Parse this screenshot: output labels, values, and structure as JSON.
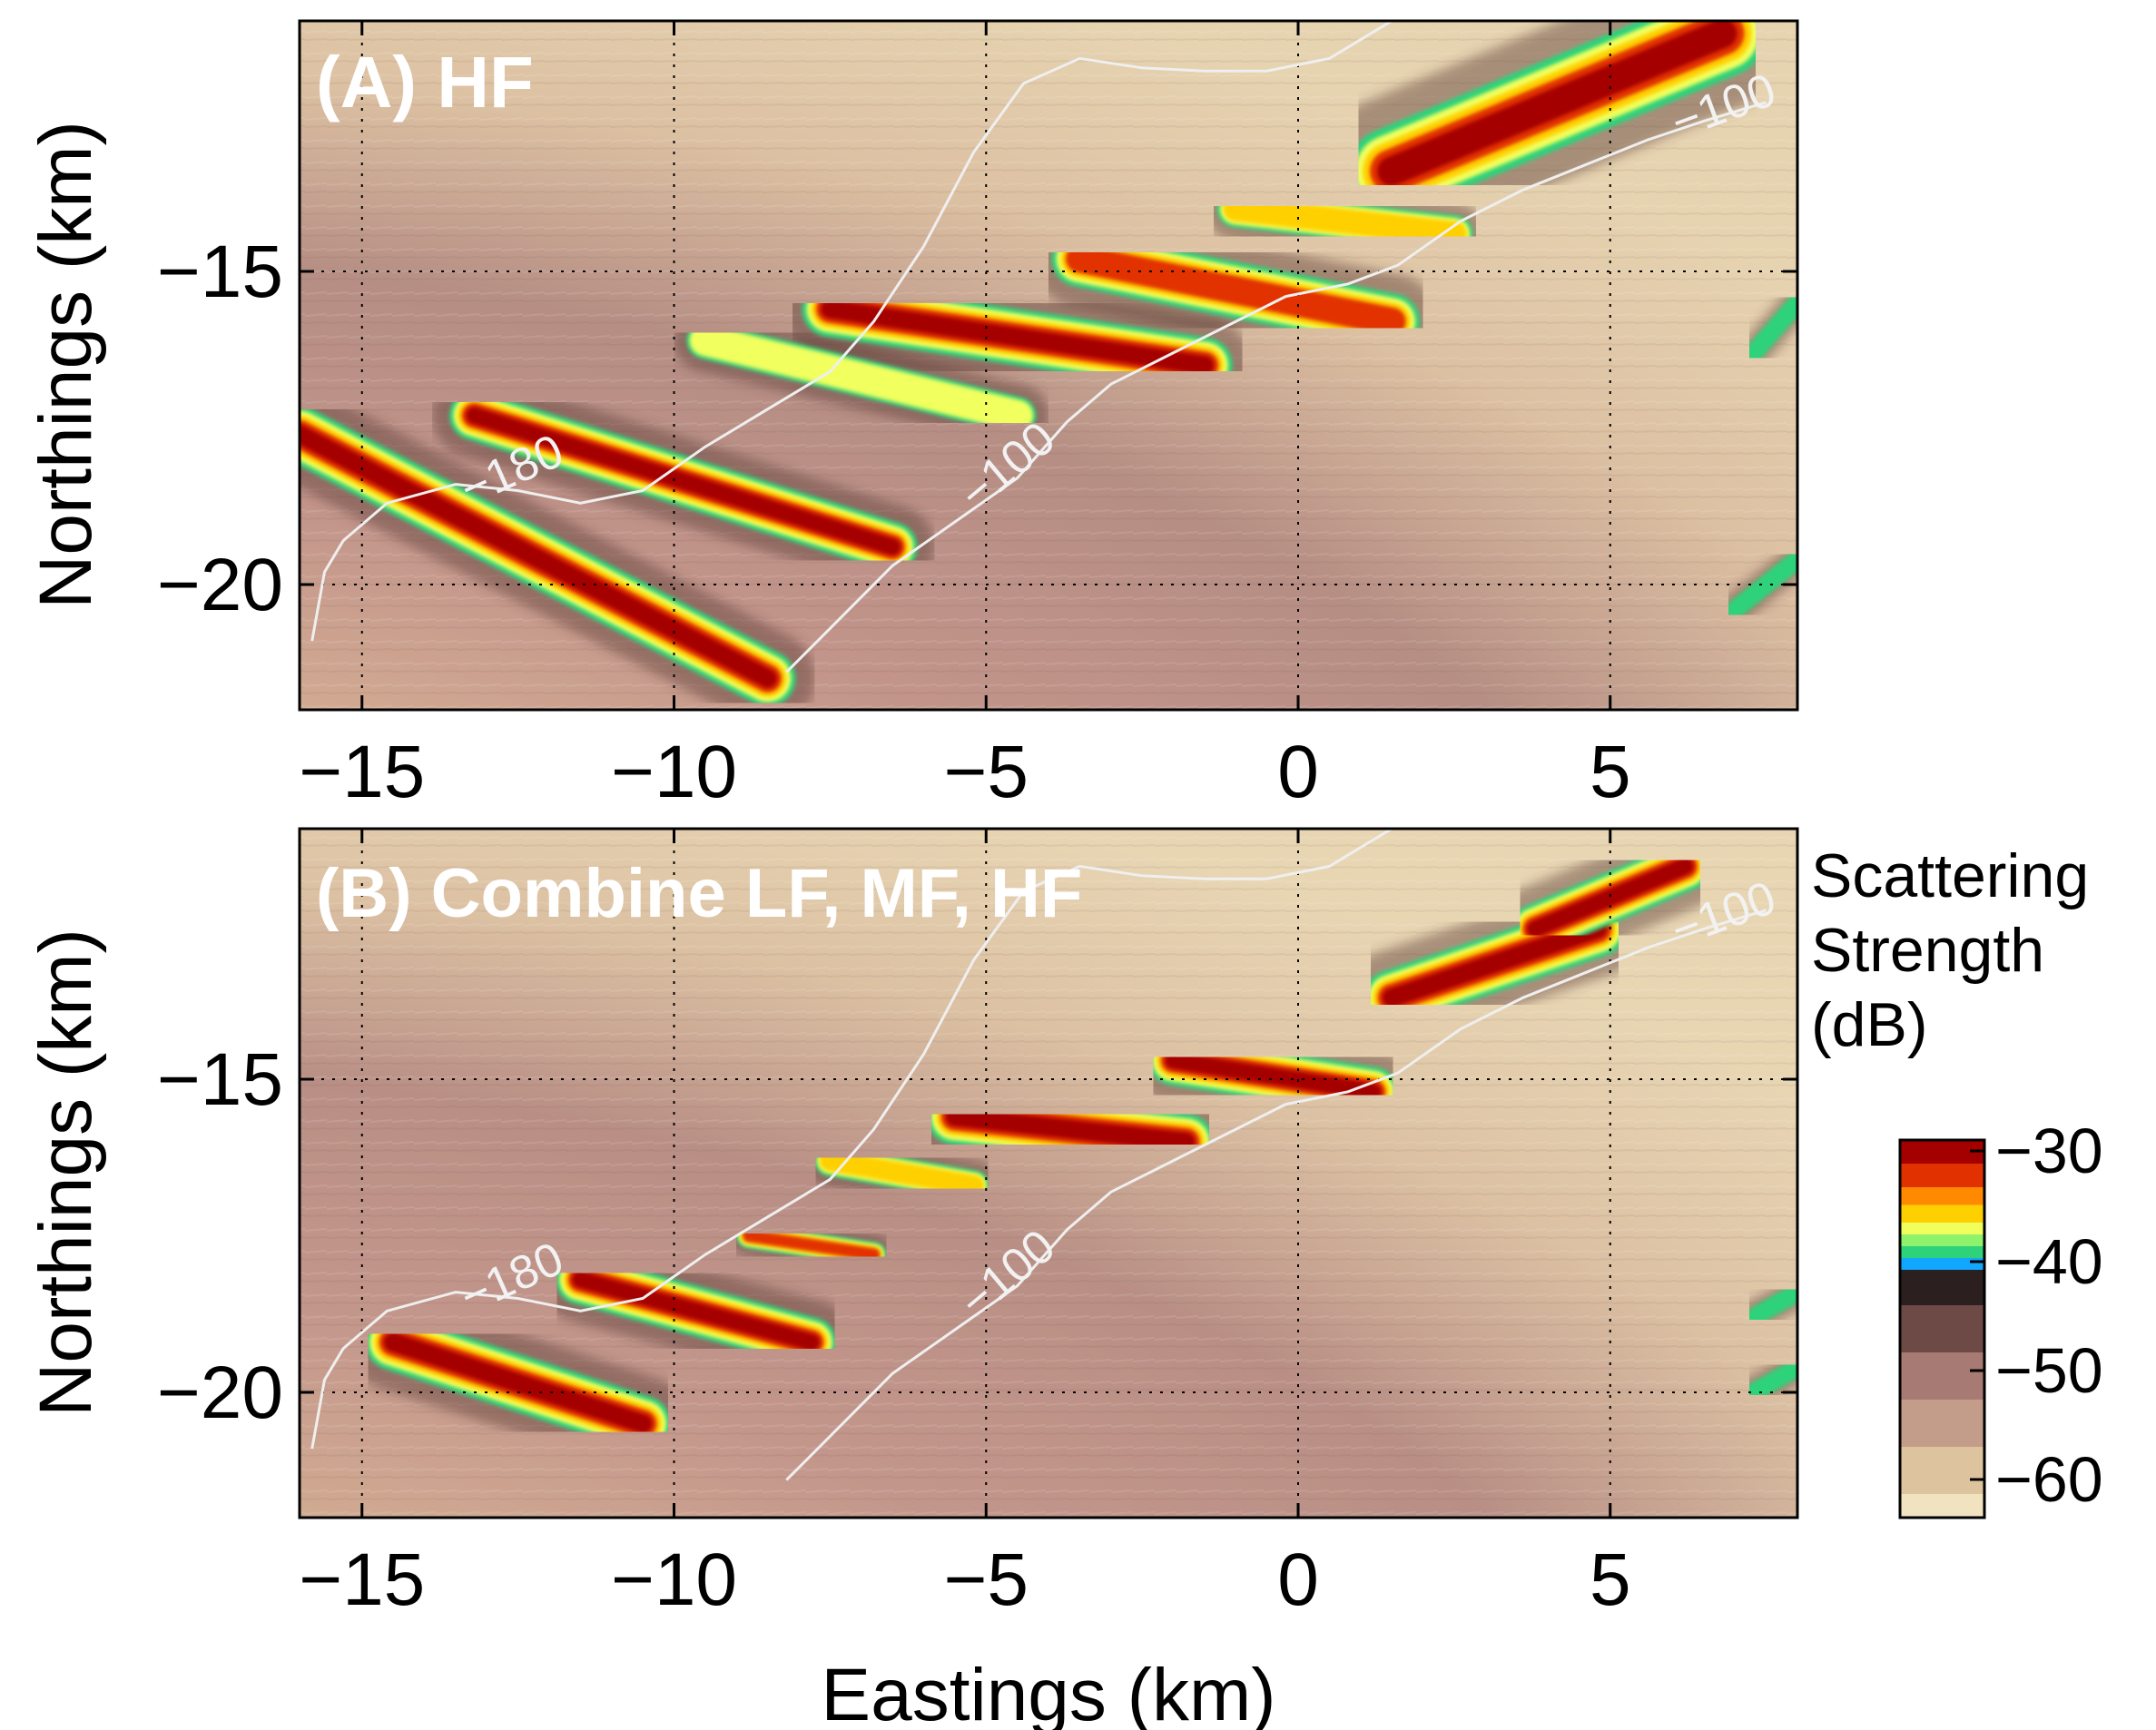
{
  "figure": {
    "panels": [
      {
        "id": "A",
        "title": "(A) HF"
      },
      {
        "id": "B",
        "title": "(B) Combine LF, MF, HF"
      }
    ],
    "xlabel": "Eastings (km)",
    "ylabel": "Northings (km)",
    "colorbar": {
      "label_lines": [
        "Scattering",
        "Strength",
        "(dB)"
      ],
      "ticks": [
        "−30",
        "−40",
        "−50",
        "−60"
      ]
    }
  },
  "chart_data": [
    {
      "type": "heatmap",
      "title": "(A) HF",
      "xlabel": "",
      "ylabel": "Northings (km)",
      "xlim": [
        -16,
        8
      ],
      "ylim": [
        -22,
        -11
      ],
      "x_ticks": [
        -15,
        -10,
        -5,
        0,
        5
      ],
      "x_tick_labels": [
        "−15",
        "−10",
        "−5",
        "0",
        "5"
      ],
      "y_ticks": [
        -15,
        -20
      ],
      "y_tick_labels": [
        "−15",
        "−20"
      ],
      "grid": true,
      "colormap_range_db": [
        -62,
        -30
      ],
      "contours": [
        {
          "label": "−180",
          "points": [
            [
              -15.8,
              -20.9
            ],
            [
              -15.6,
              -19.8
            ],
            [
              -15.3,
              -19.3
            ],
            [
              -14.6,
              -18.7
            ],
            [
              -13.5,
              -18.4
            ],
            [
              -12.5,
              -18.5
            ],
            [
              -11.5,
              -18.7
            ],
            [
              -10.5,
              -18.5
            ],
            [
              -9.5,
              -17.8
            ],
            [
              -8.5,
              -17.2
            ],
            [
              -7.5,
              -16.6
            ],
            [
              -6.8,
              -15.8
            ],
            [
              -6.0,
              -14.6
            ],
            [
              -5.2,
              -13.1
            ],
            [
              -4.4,
              -12.0
            ],
            [
              -3.5,
              -11.6
            ],
            [
              -2.5,
              -11.75
            ],
            [
              -1.5,
              -11.8
            ],
            [
              -0.5,
              -11.8
            ],
            [
              0.5,
              -11.6
            ],
            [
              1.5,
              -11.0
            ],
            [
              2.4,
              -10.7
            ],
            [
              3.2,
              -10.5
            ]
          ]
        },
        {
          "label": "−100",
          "points": [
            [
              -8.2,
              -21.4
            ],
            [
              -7.4,
              -20.6
            ],
            [
              -6.5,
              -19.7
            ],
            [
              -5.5,
              -19.0
            ],
            [
              -4.5,
              -18.3
            ],
            [
              -3.7,
              -17.4
            ],
            [
              -3.0,
              -16.8
            ],
            [
              -2.2,
              -16.4
            ],
            [
              -1.2,
              -15.9
            ],
            [
              -0.2,
              -15.4
            ],
            [
              0.8,
              -15.2
            ],
            [
              1.6,
              -14.9
            ],
            [
              2.6,
              -14.2
            ],
            [
              3.6,
              -13.7
            ],
            [
              4.6,
              -13.3
            ],
            [
              5.6,
              -12.9
            ],
            [
              6.5,
              -12.6
            ],
            [
              7.5,
              -12.3
            ]
          ]
        }
      ],
      "contour_label_positions": [
        {
          "label": "−180",
          "x": -12.5,
          "y": -18.4,
          "angle": -24
        },
        {
          "label": "−180",
          "x": 2.4,
          "y": -10.7,
          "angle": -30
        },
        {
          "label": "−100",
          "x": -4.5,
          "y": -18.3,
          "angle": -40
        },
        {
          "label": "−100",
          "x": 6.9,
          "y": -12.6,
          "angle": -20
        }
      ],
      "scatter_bands": [
        {
          "x0": -16,
          "y0": -17.6,
          "x1": -8.5,
          "y1": -21.5,
          "width_km": 0.9,
          "peak_db": -31
        },
        {
          "x0": -13.2,
          "y0": -17.3,
          "x1": -6.5,
          "y1": -19.4,
          "width_km": 0.8,
          "peak_db": -32
        },
        {
          "x0": -9.5,
          "y0": -16.1,
          "x1": -4.5,
          "y1": -17.3,
          "width_km": 0.6,
          "peak_db": -38
        },
        {
          "x0": -7.5,
          "y0": -15.6,
          "x1": -1.5,
          "y1": -16.5,
          "width_km": 0.9,
          "peak_db": -32
        },
        {
          "x0": -3.5,
          "y0": -14.8,
          "x1": 1.5,
          "y1": -15.8,
          "width_km": 0.9,
          "peak_db": -34
        },
        {
          "x0": -1.0,
          "y0": -14.0,
          "x1": 2.5,
          "y1": -14.4,
          "width_km": 0.6,
          "peak_db": -36
        },
        {
          "x0": 1.5,
          "y0": -13.4,
          "x1": 6.8,
          "y1": -11.2,
          "width_km": 1.4,
          "peak_db": -30
        },
        {
          "x0": 7.0,
          "y0": -20.4,
          "x1": 8.0,
          "y1": -19.6,
          "width_km": 0.3,
          "peak_db": -40
        },
        {
          "x0": 7.3,
          "y0": -16.3,
          "x1": 8.0,
          "y1": -15.5,
          "width_km": 0.3,
          "peak_db": -40
        }
      ]
    },
    {
      "type": "heatmap",
      "title": "(B) Combine LF, MF, HF",
      "xlabel": "Eastings (km)",
      "ylabel": "Northings (km)",
      "xlim": [
        -16,
        8
      ],
      "ylim": [
        -22,
        -11
      ],
      "x_ticks": [
        -15,
        -10,
        -5,
        0,
        5
      ],
      "x_tick_labels": [
        "−15",
        "−10",
        "−5",
        "0",
        "5"
      ],
      "y_ticks": [
        -15,
        -20
      ],
      "y_tick_labels": [
        "−15",
        "−20"
      ],
      "grid": true,
      "colormap_range_db": [
        -62,
        -30
      ],
      "contours": [
        {
          "label": "−180",
          "points": [
            [
              -15.8,
              -20.9
            ],
            [
              -15.6,
              -19.8
            ],
            [
              -15.3,
              -19.3
            ],
            [
              -14.6,
              -18.7
            ],
            [
              -13.5,
              -18.4
            ],
            [
              -12.5,
              -18.5
            ],
            [
              -11.5,
              -18.7
            ],
            [
              -10.5,
              -18.5
            ],
            [
              -9.5,
              -17.8
            ],
            [
              -8.5,
              -17.2
            ],
            [
              -7.5,
              -16.6
            ],
            [
              -6.8,
              -15.8
            ],
            [
              -6.0,
              -14.6
            ],
            [
              -5.2,
              -13.1
            ],
            [
              -4.4,
              -12.0
            ],
            [
              -3.5,
              -11.6
            ],
            [
              -2.5,
              -11.75
            ],
            [
              -1.5,
              -11.8
            ],
            [
              -0.5,
              -11.8
            ],
            [
              0.5,
              -11.6
            ],
            [
              1.5,
              -11.0
            ],
            [
              2.4,
              -10.7
            ],
            [
              3.2,
              -10.5
            ]
          ]
        },
        {
          "label": "−100",
          "points": [
            [
              -8.2,
              -21.4
            ],
            [
              -7.4,
              -20.6
            ],
            [
              -6.5,
              -19.7
            ],
            [
              -5.5,
              -19.0
            ],
            [
              -4.5,
              -18.3
            ],
            [
              -3.7,
              -17.4
            ],
            [
              -3.0,
              -16.8
            ],
            [
              -2.2,
              -16.4
            ],
            [
              -1.2,
              -15.9
            ],
            [
              -0.2,
              -15.4
            ],
            [
              0.8,
              -15.2
            ],
            [
              1.6,
              -14.9
            ],
            [
              2.6,
              -14.2
            ],
            [
              3.6,
              -13.7
            ],
            [
              4.6,
              -13.3
            ],
            [
              5.6,
              -12.9
            ],
            [
              6.5,
              -12.6
            ],
            [
              7.5,
              -12.3
            ]
          ]
        }
      ],
      "contour_label_positions": [
        {
          "label": "−180",
          "x": -12.5,
          "y": -18.4,
          "angle": -24
        },
        {
          "label": "−180",
          "x": 2.4,
          "y": -10.7,
          "angle": -30
        },
        {
          "label": "−100",
          "x": -4.5,
          "y": -18.3,
          "angle": -40
        },
        {
          "label": "−100",
          "x": 6.9,
          "y": -12.6,
          "angle": -20
        }
      ],
      "scatter_bands": [
        {
          "x0": -14.5,
          "y0": -19.2,
          "x1": -10.5,
          "y1": -20.5,
          "width_km": 0.9,
          "peak_db": -30
        },
        {
          "x0": -11.5,
          "y0": -18.2,
          "x1": -7.8,
          "y1": -19.2,
          "width_km": 0.8,
          "peak_db": -31
        },
        {
          "x0": -8.8,
          "y0": -17.5,
          "x1": -6.8,
          "y1": -17.8,
          "width_km": 0.4,
          "peak_db": -33
        },
        {
          "x0": -7.5,
          "y0": -16.3,
          "x1": -5.2,
          "y1": -16.7,
          "width_km": 0.5,
          "peak_db": -35
        },
        {
          "x0": -5.5,
          "y0": -15.6,
          "x1": -1.8,
          "y1": -16.0,
          "width_km": 0.9,
          "peak_db": -30
        },
        {
          "x0": -2.0,
          "y0": -14.7,
          "x1": 1.2,
          "y1": -15.2,
          "width_km": 0.8,
          "peak_db": -31
        },
        {
          "x0": 1.5,
          "y0": -13.7,
          "x1": 4.8,
          "y1": -12.6,
          "width_km": 0.9,
          "peak_db": -30
        },
        {
          "x0": 3.8,
          "y0": -12.6,
          "x1": 6.2,
          "y1": -11.6,
          "width_km": 0.8,
          "peak_db": -30
        },
        {
          "x0": 7.3,
          "y0": -20.0,
          "x1": 8.0,
          "y1": -19.6,
          "width_km": 0.3,
          "peak_db": -40
        },
        {
          "x0": 7.3,
          "y0": -18.8,
          "x1": 8.0,
          "y1": -18.4,
          "width_km": 0.3,
          "peak_db": -40
        }
      ]
    }
  ]
}
